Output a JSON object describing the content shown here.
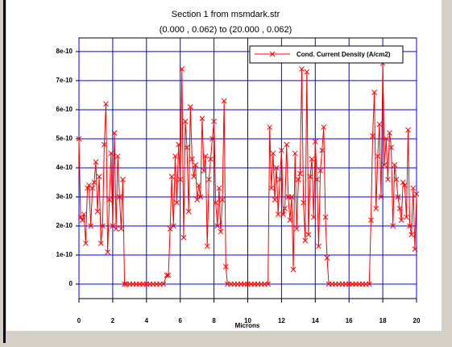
{
  "chart_data": {
    "type": "line",
    "title": "Section 1 from msmdark.str",
    "subtitle": "(0.000 , 0.062) to (20.000 , 0.062)",
    "x_label": "Microns",
    "x": [
      0,
      0.1,
      0.2,
      0.3,
      0.4,
      0.5,
      0.6,
      0.7,
      0.8,
      0.9,
      1.0,
      1.1,
      1.2,
      1.3,
      1.4,
      1.5,
      1.6,
      1.7,
      1.8,
      1.9,
      2.0,
      2.1,
      2.2,
      2.3,
      2.4,
      2.5,
      2.6,
      2.7,
      2.8,
      3.0,
      3.2,
      3.4,
      3.6,
      3.8,
      4.0,
      4.2,
      4.4,
      4.6,
      4.8,
      5.0,
      5.2,
      5.3,
      5.4,
      5.5,
      5.6,
      5.7,
      5.8,
      5.9,
      6.0,
      6.1,
      6.2,
      6.3,
      6.4,
      6.5,
      6.6,
      6.7,
      6.8,
      6.9,
      7.0,
      7.1,
      7.2,
      7.3,
      7.4,
      7.5,
      7.6,
      7.7,
      7.8,
      7.9,
      8.0,
      8.1,
      8.2,
      8.3,
      8.4,
      8.5,
      8.6,
      8.7,
      8.8,
      9.0,
      9.2,
      9.4,
      9.6,
      9.8,
      10.0,
      10.2,
      10.4,
      10.6,
      10.8,
      11.0,
      11.2,
      11.3,
      11.4,
      11.5,
      11.6,
      11.7,
      11.8,
      11.9,
      12.0,
      12.1,
      12.2,
      12.3,
      12.4,
      12.5,
      12.6,
      12.7,
      12.8,
      12.9,
      13.0,
      13.1,
      13.2,
      13.3,
      13.4,
      13.5,
      13.6,
      13.7,
      13.8,
      13.9,
      14.0,
      14.1,
      14.2,
      14.3,
      14.4,
      14.5,
      14.6,
      14.7,
      14.8,
      15.0,
      15.2,
      15.4,
      15.6,
      15.8,
      16.0,
      16.2,
      16.4,
      16.6,
      16.8,
      17.0,
      17.2,
      17.3,
      17.4,
      17.5,
      17.6,
      17.7,
      17.8,
      17.9,
      18.0,
      18.1,
      18.2,
      18.3,
      18.4,
      18.5,
      18.6,
      18.7,
      18.8,
      18.9,
      19.0,
      19.1,
      19.2,
      19.3,
      19.4,
      19.5,
      19.6,
      19.7,
      19.8,
      19.9,
      20.0
    ],
    "series": [
      {
        "name": "Cond. Current Density (A/cm2)",
        "color": "#ff0000",
        "values": [
          5e-10,
          2.3e-10,
          2.2e-10,
          2.4e-10,
          1.4e-10,
          3.3e-10,
          3.4e-10,
          2e-10,
          3.3e-10,
          3.5e-10,
          4.2e-10,
          2.5e-10,
          3.7e-10,
          1.4e-10,
          2e-10,
          4.8e-10,
          6.2e-10,
          1.1e-10,
          2.9e-10,
          4.5e-10,
          2e-10,
          5.2e-10,
          1.9e-10,
          4.4e-10,
          3e-10,
          1.9e-10,
          3.6e-10,
          0,
          0,
          0,
          0,
          0,
          0,
          0,
          0,
          0,
          0,
          0,
          0,
          0,
          3e-11,
          3e-11,
          1.9e-10,
          3.7e-10,
          2e-10,
          4.4e-10,
          2.8e-10,
          4.8e-10,
          3.6e-10,
          7.4e-10,
          1.6e-10,
          5.6e-10,
          4.7e-10,
          2.5e-10,
          6.1e-10,
          4.3e-10,
          3.7e-10,
          4.1e-10,
          2.9e-10,
          3.4e-10,
          3e-10,
          5.7e-10,
          3.9e-10,
          4.4e-10,
          1.3e-10,
          3.6e-10,
          4.3e-10,
          5e-10,
          5.6e-10,
          2.8e-10,
          2e-10,
          3.3e-10,
          1.8e-10,
          2.9e-10,
          6.3e-10,
          6e-11,
          0,
          0,
          0,
          0,
          0,
          0,
          0,
          0,
          0,
          0,
          0,
          0,
          0,
          5.4e-10,
          3.3e-10,
          4.5e-10,
          2.9e-10,
          4e-10,
          2.4e-10,
          3.6e-10,
          4.6e-10,
          2.4e-10,
          2.6e-10,
          4.8e-10,
          3e-10,
          2.2e-10,
          3e-10,
          5e-11,
          4.5e-10,
          1.9e-10,
          3.6e-10,
          3.8e-10,
          7.4e-10,
          2.8e-10,
          1.5e-10,
          7.3e-10,
          1.7e-10,
          3.7e-10,
          4.3e-10,
          2.3e-10,
          4.9e-10,
          3.6e-10,
          1.3e-10,
          3.9e-10,
          4.6e-10,
          5.4e-10,
          2.3e-10,
          9e-11,
          0,
          0,
          0,
          0,
          0,
          0,
          0,
          0,
          0,
          0,
          0,
          0,
          0,
          2.2e-10,
          5.1e-10,
          6.6e-10,
          2.6e-10,
          4.4e-10,
          5.5e-10,
          3e-10,
          7.6e-10,
          4.1e-10,
          5e-10,
          3.6e-10,
          5.2e-10,
          4.7e-10,
          2e-10,
          4.1e-10,
          3.6e-10,
          3e-10,
          2.6e-10,
          2.2e-10,
          3.5e-10,
          3.4e-10,
          2.3e-10,
          5.3e-10,
          2e-10,
          1.7e-10,
          3.3e-10,
          1.2e-10,
          3.1e-10
        ]
      }
    ],
    "xlim": [
      0,
      20
    ],
    "ylim": [
      -5e-11,
      8.47e-10
    ],
    "xticks": [
      0,
      2,
      4,
      6,
      8,
      10,
      12,
      14,
      16,
      18,
      20
    ],
    "yticks": [
      0,
      1e-10,
      2e-10,
      3e-10,
      4e-10,
      5e-10,
      6e-10,
      7e-10,
      8e-10
    ],
    "grid": true,
    "grid_color": "#0000ff",
    "legend": "upper right"
  }
}
